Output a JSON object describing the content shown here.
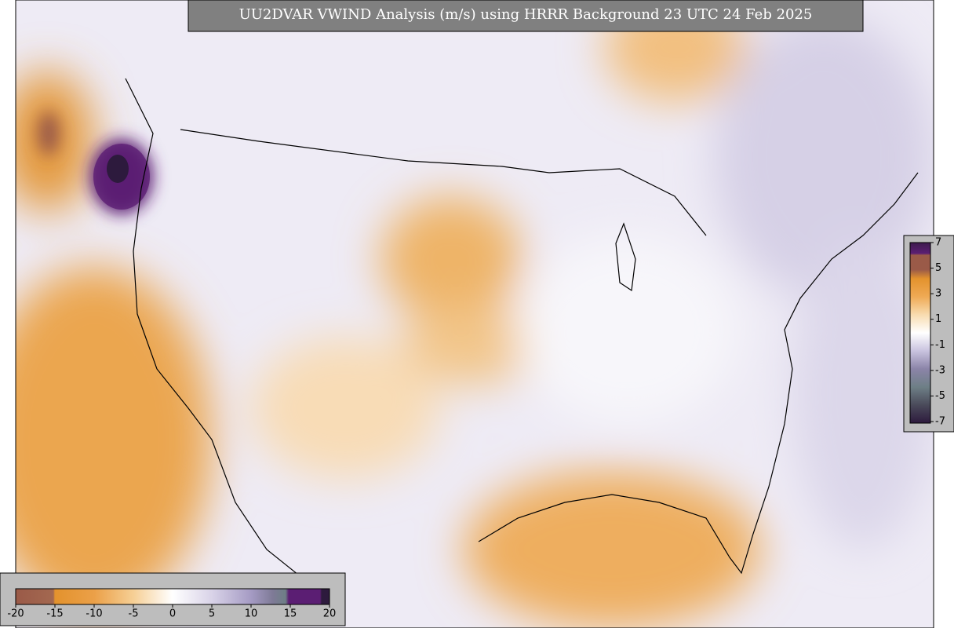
{
  "title": "UU2DVAR VWIND Analysis (m/s) using HRRR Background 23 UTC 24 Feb 2025",
  "colorbars": {
    "horizontal": {
      "ticks": [
        -20,
        -15,
        -10,
        -5,
        0,
        5,
        10,
        15,
        20
      ]
    },
    "vertical": {
      "ticks": [
        7,
        5,
        3,
        1,
        -1,
        -3,
        -5,
        -7
      ]
    }
  }
}
